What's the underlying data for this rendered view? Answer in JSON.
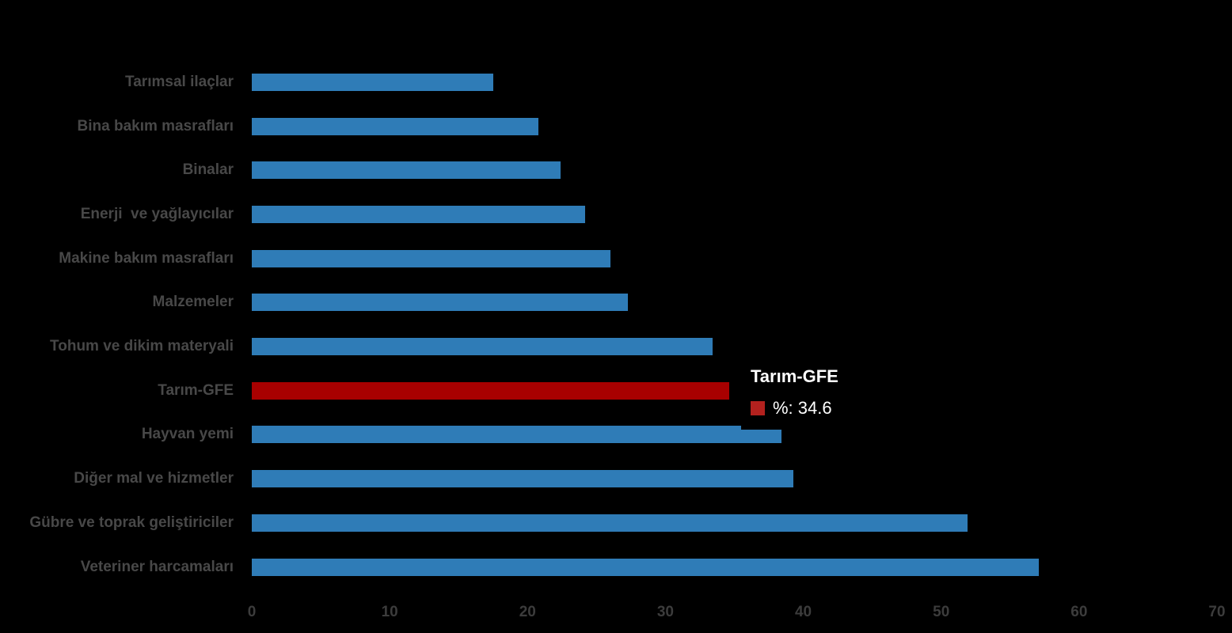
{
  "chart_data": {
    "type": "bar",
    "orientation": "horizontal",
    "title": "",
    "xlabel": "",
    "ylabel": "",
    "categories": [
      "Tarımsal ilaçlar",
      "Bina bakım masrafları",
      "Binalar",
      "Enerji  ve yağlayıcılar",
      "Makine bakım masrafları",
      "Malzemeler",
      "Tohum ve dikim materyali",
      "Tarım-GFE",
      "Hayvan yemi",
      "Diğer mal ve hizmetler",
      "Gübre ve toprak geliştiriciler",
      "Veteriner harcamaları"
    ],
    "values": [
      17.5,
      20.8,
      22.4,
      24.2,
      26.0,
      27.3,
      33.4,
      34.6,
      38.4,
      39.3,
      51.9,
      57.1
    ],
    "highlight_category": "Tarım-GFE",
    "xlim": [
      0,
      70
    ],
    "x_ticks": [
      0,
      10,
      20,
      30,
      40,
      50,
      60,
      70
    ],
    "grid": false,
    "legend_position": "none",
    "colors": {
      "bar": "#2F7CB7",
      "highlight": "#A80000",
      "background": "#000000",
      "category_label": "#484848",
      "tick_label": "#3C3C3C"
    }
  },
  "tooltip": {
    "title": "Tarım-GFE",
    "value_label": "%: 34.6",
    "marker_color": "#B3211E",
    "text_color": "#FFFFFF"
  }
}
